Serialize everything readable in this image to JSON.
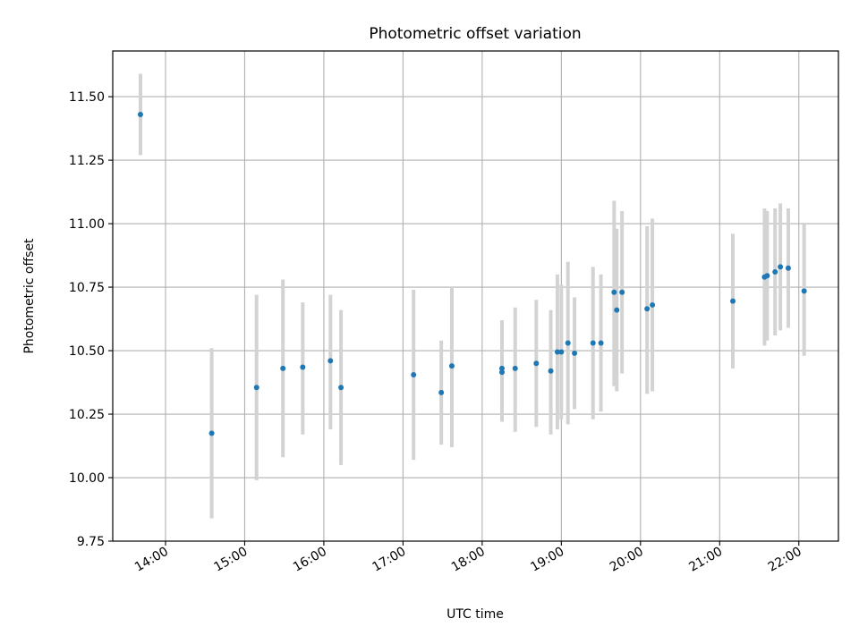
{
  "chart_data": {
    "type": "scatter",
    "title": "Photometric offset variation",
    "xlabel": "UTC time",
    "ylabel": "Photometric offset",
    "x_ticks": [
      "14:00",
      "15:00",
      "16:00",
      "17:00",
      "18:00",
      "19:00",
      "20:00",
      "21:00",
      "22:00"
    ],
    "y_ticks": [
      "9.75",
      "10.00",
      "10.25",
      "10.50",
      "10.75",
      "11.00",
      "11.25",
      "11.50"
    ],
    "xlim": [
      "13:20",
      "22:30"
    ],
    "ylim": [
      9.75,
      11.68
    ],
    "grid": true,
    "series": [
      {
        "marker_color": "#1f77b4",
        "errorbar_color": "#d3d3d3",
        "points": [
          {
            "x": "13:41",
            "y": 11.43,
            "ylow": 11.27,
            "yhigh": 11.59
          },
          {
            "x": "14:35",
            "y": 10.175,
            "ylow": 9.84,
            "yhigh": 10.51
          },
          {
            "x": "15:09",
            "y": 10.355,
            "ylow": 9.99,
            "yhigh": 10.72
          },
          {
            "x": "15:29",
            "y": 10.43,
            "ylow": 10.08,
            "yhigh": 10.78
          },
          {
            "x": "15:44",
            "y": 10.435,
            "ylow": 10.17,
            "yhigh": 10.69
          },
          {
            "x": "16:05",
            "y": 10.46,
            "ylow": 10.19,
            "yhigh": 10.72
          },
          {
            "x": "16:13",
            "y": 10.355,
            "ylow": 10.05,
            "yhigh": 10.66
          },
          {
            "x": "17:08",
            "y": 10.405,
            "ylow": 10.07,
            "yhigh": 10.74
          },
          {
            "x": "17:29",
            "y": 10.335,
            "ylow": 10.13,
            "yhigh": 10.54
          },
          {
            "x": "17:37",
            "y": 10.44,
            "ylow": 10.12,
            "yhigh": 10.75
          },
          {
            "x": "18:15",
            "y": 10.43,
            "ylow": 10.22,
            "yhigh": 10.62
          },
          {
            "x": "18:15",
            "y": 10.415,
            "ylow": 10.22,
            "yhigh": 10.61
          },
          {
            "x": "18:25",
            "y": 10.43,
            "ylow": 10.18,
            "yhigh": 10.67
          },
          {
            "x": "18:41",
            "y": 10.45,
            "ylow": 10.2,
            "yhigh": 10.7
          },
          {
            "x": "18:52",
            "y": 10.42,
            "ylow": 10.17,
            "yhigh": 10.66
          },
          {
            "x": "18:57",
            "y": 10.495,
            "ylow": 10.19,
            "yhigh": 10.8
          },
          {
            "x": "19:00",
            "y": 10.495,
            "ylow": 10.23,
            "yhigh": 10.76
          },
          {
            "x": "19:05",
            "y": 10.53,
            "ylow": 10.21,
            "yhigh": 10.85
          },
          {
            "x": "19:10",
            "y": 10.49,
            "ylow": 10.27,
            "yhigh": 10.71
          },
          {
            "x": "19:24",
            "y": 10.53,
            "ylow": 10.23,
            "yhigh": 10.83
          },
          {
            "x": "19:30",
            "y": 10.53,
            "ylow": 10.26,
            "yhigh": 10.8
          },
          {
            "x": "19:40",
            "y": 10.73,
            "ylow": 10.36,
            "yhigh": 11.09
          },
          {
            "x": "19:42",
            "y": 10.66,
            "ylow": 10.34,
            "yhigh": 10.98
          },
          {
            "x": "19:46",
            "y": 10.73,
            "ylow": 10.41,
            "yhigh": 11.05
          },
          {
            "x": "20:05",
            "y": 10.665,
            "ylow": 10.33,
            "yhigh": 10.99
          },
          {
            "x": "20:09",
            "y": 10.68,
            "ylow": 10.34,
            "yhigh": 11.02
          },
          {
            "x": "21:10",
            "y": 10.695,
            "ylow": 10.43,
            "yhigh": 10.96
          },
          {
            "x": "21:34",
            "y": 10.79,
            "ylow": 10.52,
            "yhigh": 11.06
          },
          {
            "x": "21:36",
            "y": 10.795,
            "ylow": 10.54,
            "yhigh": 11.05
          },
          {
            "x": "21:42",
            "y": 10.81,
            "ylow": 10.56,
            "yhigh": 11.06
          },
          {
            "x": "21:46",
            "y": 10.83,
            "ylow": 10.58,
            "yhigh": 11.08
          },
          {
            "x": "21:52",
            "y": 10.825,
            "ylow": 10.59,
            "yhigh": 11.06
          },
          {
            "x": "22:04",
            "y": 10.735,
            "ylow": 10.48,
            "yhigh": 11.0
          }
        ]
      }
    ]
  }
}
